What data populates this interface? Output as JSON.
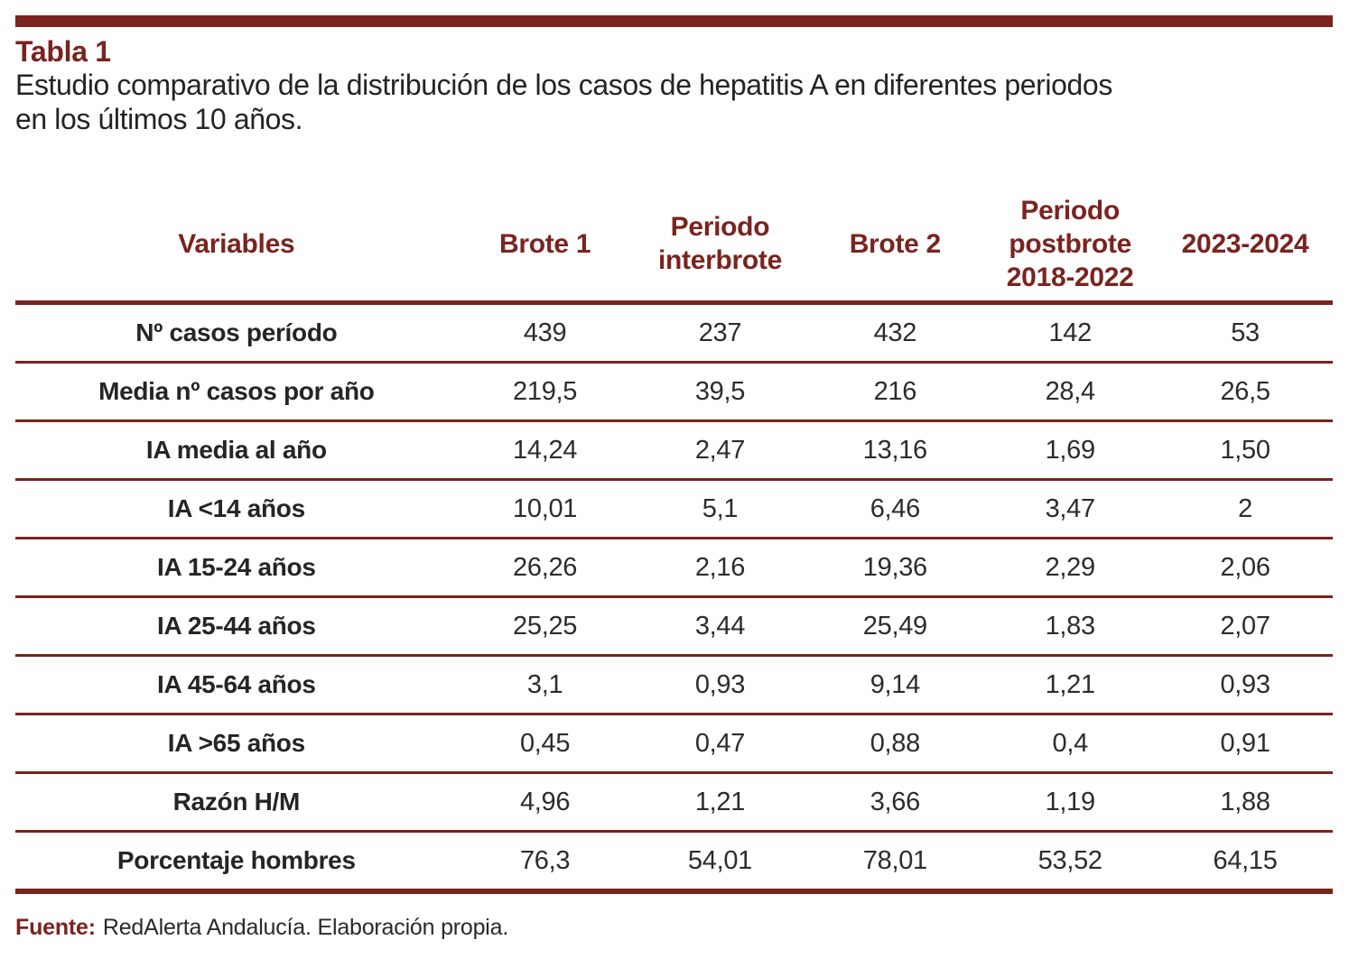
{
  "colors": {
    "accent_maroon": "#7a231f",
    "body_text": "#2c2c2c"
  },
  "header": {
    "table_label": "Tabla 1",
    "title_line1": "Estudio comparativo de la distribución de los casos de hepatitis A en diferentes periodos",
    "title_line2": "en los últimos 10 años."
  },
  "table": {
    "columns": [
      "Variables",
      "Brote 1",
      "Periodo interbrote",
      "Brote 2",
      "Periodo postbrote 2018-2022",
      "2023-2024"
    ],
    "rows": [
      {
        "label": "Nº casos período",
        "values": [
          "439",
          "237",
          "432",
          "142",
          "53"
        ]
      },
      {
        "label": "Media nº casos por año",
        "values": [
          "219,5",
          "39,5",
          "216",
          "28,4",
          "26,5"
        ]
      },
      {
        "label": "IA media al año",
        "values": [
          "14,24",
          "2,47",
          "13,16",
          "1,69",
          "1,50"
        ]
      },
      {
        "label": "IA <14 años",
        "values": [
          "10,01",
          "5,1",
          "6,46",
          "3,47",
          "2"
        ]
      },
      {
        "label": "IA 15-24 años",
        "values": [
          "26,26",
          "2,16",
          "19,36",
          "2,29",
          "2,06"
        ]
      },
      {
        "label": "IA 25-44 años",
        "values": [
          "25,25",
          "3,44",
          "25,49",
          "1,83",
          "2,07"
        ]
      },
      {
        "label": "IA 45-64 años",
        "values": [
          "3,1",
          "0,93",
          "9,14",
          "1,21",
          "0,93"
        ]
      },
      {
        "label": "IA >65 años",
        "values": [
          "0,45",
          "0,47",
          "0,88",
          "0,4",
          "0,91"
        ]
      },
      {
        "label": "Razón H/M",
        "values": [
          "4,96",
          "1,21",
          "3,66",
          "1,19",
          "1,88"
        ]
      },
      {
        "label": "Porcentaje hombres",
        "values": [
          "76,3",
          "54,01",
          "78,01",
          "53,52",
          "64,15"
        ]
      }
    ]
  },
  "footer": {
    "source_label": "Fuente:",
    "source_text": "RedAlerta Andalucía. Elaboración propia."
  }
}
